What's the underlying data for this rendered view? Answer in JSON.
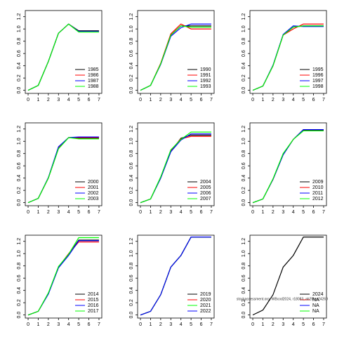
{
  "chart_data": [
    {
      "type": "line",
      "x": [
        0,
        1,
        2,
        3,
        4,
        5,
        6,
        7
      ],
      "xlim": [
        -0.28,
        7.28
      ],
      "xticks": [
        0,
        1,
        2,
        3,
        4,
        5,
        6,
        7
      ],
      "ylim": [
        -0.05,
        1.3
      ],
      "yticks": [
        {
          "value": 0,
          "label": "0.0"
        },
        0.2,
        0.4,
        0.6,
        0.8,
        {
          "value": 1,
          "label": "1.0"
        },
        1.2
      ],
      "legend": "bottomright",
      "series": [
        {
          "name": "1985",
          "color": "#000000",
          "values": [
            0,
            0.08,
            0.47,
            0.93,
            1.08,
            0.97,
            0.97,
            0.97
          ]
        },
        {
          "name": "1986",
          "color": "#ff0000",
          "values": [
            0,
            0.08,
            0.47,
            0.93,
            1.08,
            0.96,
            0.96,
            0.96
          ]
        },
        {
          "name": "1987",
          "color": "#0000ff",
          "values": [
            0,
            0.08,
            0.47,
            0.93,
            1.08,
            0.96,
            0.96,
            0.96
          ]
        },
        {
          "name": "1988",
          "color": "#00ff00",
          "values": [
            0,
            0.08,
            0.47,
            0.93,
            1.08,
            0.95,
            0.95,
            0.95
          ]
        }
      ]
    },
    {
      "type": "line",
      "x": [
        0,
        1,
        2,
        3,
        4,
        5,
        6,
        7
      ],
      "xlim": [
        -0.28,
        7.28
      ],
      "xticks": [
        0,
        1,
        2,
        3,
        4,
        5,
        6,
        7
      ],
      "ylim": [
        -0.05,
        1.3
      ],
      "yticks": [
        {
          "value": 0,
          "label": "0.0"
        },
        0.2,
        0.4,
        0.6,
        0.8,
        {
          "value": 1,
          "label": "1.0"
        },
        1.2
      ],
      "legend": "bottomright",
      "series": [
        {
          "name": "1990",
          "color": "#000000",
          "values": [
            0,
            0.08,
            0.43,
            0.9,
            1.05,
            1.05,
            1.05,
            1.05
          ]
        },
        {
          "name": "1991",
          "color": "#ff0000",
          "values": [
            0,
            0.08,
            0.44,
            0.92,
            1.08,
            1.0,
            1.0,
            1.0
          ]
        },
        {
          "name": "1992",
          "color": "#0000ff",
          "values": [
            0,
            0.08,
            0.42,
            0.88,
            1.02,
            1.08,
            1.08,
            1.08
          ]
        },
        {
          "name": "1993",
          "color": "#00ff00",
          "values": [
            0,
            0.08,
            0.43,
            0.9,
            1.05,
            1.03,
            1.03,
            1.03
          ]
        }
      ]
    },
    {
      "type": "line",
      "x": [
        0,
        1,
        2,
        3,
        4,
        5,
        6,
        7
      ],
      "xlim": [
        -0.28,
        7.28
      ],
      "xticks": [
        0,
        1,
        2,
        3,
        4,
        5,
        6,
        7
      ],
      "ylim": [
        -0.05,
        1.3
      ],
      "yticks": [
        {
          "value": 0,
          "label": "0.0"
        },
        0.2,
        0.4,
        0.6,
        0.8,
        {
          "value": 1,
          "label": "1.0"
        },
        1.2
      ],
      "legend": "bottomright",
      "series": [
        {
          "name": "1995",
          "color": "#000000",
          "values": [
            0,
            0.07,
            0.4,
            0.9,
            1.03,
            1.05,
            1.05,
            1.05
          ]
        },
        {
          "name": "1996",
          "color": "#ff0000",
          "values": [
            0,
            0.07,
            0.4,
            0.9,
            1.0,
            1.08,
            1.08,
            1.08
          ]
        },
        {
          "name": "1997",
          "color": "#0000ff",
          "values": [
            0,
            0.07,
            0.41,
            0.91,
            1.05,
            1.04,
            1.04,
            1.04
          ]
        },
        {
          "name": "1998",
          "color": "#00ff00",
          "values": [
            0,
            0.07,
            0.4,
            0.9,
            1.03,
            1.05,
            1.05,
            1.05
          ]
        }
      ]
    },
    {
      "type": "line",
      "x": [
        0,
        1,
        2,
        3,
        4,
        5,
        6,
        7
      ],
      "xlim": [
        -0.28,
        7.28
      ],
      "xticks": [
        0,
        1,
        2,
        3,
        4,
        5,
        6,
        7
      ],
      "ylim": [
        -0.05,
        1.3
      ],
      "yticks": [
        {
          "value": 0,
          "label": "0.0"
        },
        0.2,
        0.4,
        0.6,
        0.8,
        {
          "value": 1,
          "label": "1.0"
        },
        1.2
      ],
      "legend": "bottomright",
      "series": [
        {
          "name": "2000",
          "color": "#000000",
          "values": [
            0,
            0.07,
            0.4,
            0.88,
            1.06,
            1.05,
            1.05,
            1.05
          ]
        },
        {
          "name": "2001",
          "color": "#ff0000",
          "values": [
            0,
            0.07,
            0.4,
            0.9,
            1.06,
            1.06,
            1.06,
            1.06
          ]
        },
        {
          "name": "2002",
          "color": "#0000ff",
          "values": [
            0,
            0.07,
            0.41,
            0.91,
            1.06,
            1.07,
            1.07,
            1.07
          ]
        },
        {
          "name": "2003",
          "color": "#00ff00",
          "values": [
            0,
            0.07,
            0.4,
            0.88,
            1.06,
            1.04,
            1.04,
            1.04
          ]
        }
      ]
    },
    {
      "type": "line",
      "x": [
        0,
        1,
        2,
        3,
        4,
        5,
        6,
        7
      ],
      "xlim": [
        -0.28,
        7.28
      ],
      "xticks": [
        0,
        1,
        2,
        3,
        4,
        5,
        6,
        7
      ],
      "ylim": [
        -0.05,
        1.3
      ],
      "yticks": [
        {
          "value": 0,
          "label": "0.0"
        },
        0.2,
        0.4,
        0.6,
        0.8,
        {
          "value": 1,
          "label": "1.0"
        },
        1.2
      ],
      "legend": "bottomright",
      "series": [
        {
          "name": "2004",
          "color": "#000000",
          "values": [
            0,
            0.06,
            0.4,
            0.83,
            1.05,
            1.1,
            1.1,
            1.1
          ]
        },
        {
          "name": "2005",
          "color": "#ff0000",
          "values": [
            0,
            0.06,
            0.41,
            0.85,
            1.04,
            1.08,
            1.08,
            1.08
          ]
        },
        {
          "name": "2006",
          "color": "#0000ff",
          "values": [
            0,
            0.06,
            0.4,
            0.83,
            1.02,
            1.12,
            1.12,
            1.12
          ]
        },
        {
          "name": "2007",
          "color": "#00ff00",
          "values": [
            0,
            0.06,
            0.42,
            0.86,
            1.03,
            1.15,
            1.15,
            1.15
          ]
        }
      ]
    },
    {
      "type": "line",
      "x": [
        0,
        1,
        2,
        3,
        4,
        5,
        6,
        7
      ],
      "xlim": [
        -0.28,
        7.28
      ],
      "xticks": [
        0,
        1,
        2,
        3,
        4,
        5,
        6,
        7
      ],
      "ylim": [
        -0.05,
        1.3
      ],
      "yticks": [
        {
          "value": 0,
          "label": "0.0"
        },
        0.2,
        0.4,
        0.6,
        0.8,
        {
          "value": 1,
          "label": "1.0"
        },
        1.2
      ],
      "legend": "bottomright",
      "series": [
        {
          "name": "2009",
          "color": "#000000",
          "values": [
            0,
            0.06,
            0.38,
            0.78,
            1.03,
            1.18,
            1.18,
            1.18
          ]
        },
        {
          "name": "2010",
          "color": "#ff0000",
          "values": [
            0,
            0.06,
            0.38,
            0.79,
            1.03,
            1.19,
            1.19,
            1.19
          ]
        },
        {
          "name": "2011",
          "color": "#0000ff",
          "values": [
            0,
            0.06,
            0.38,
            0.78,
            1.03,
            1.19,
            1.19,
            1.19
          ]
        },
        {
          "name": "2012",
          "color": "#00ff00",
          "values": [
            0,
            0.06,
            0.39,
            0.8,
            1.03,
            1.17,
            1.17,
            1.17
          ]
        }
      ]
    },
    {
      "type": "line",
      "x": [
        0,
        1,
        2,
        3,
        4,
        5,
        6,
        7
      ],
      "xlim": [
        -0.28,
        7.28
      ],
      "xticks": [
        0,
        1,
        2,
        3,
        4,
        5,
        6,
        7
      ],
      "ylim": [
        -0.05,
        1.3
      ],
      "yticks": [
        {
          "value": 0,
          "label": "0.0"
        },
        0.2,
        0.4,
        0.6,
        0.8,
        {
          "value": 1,
          "label": "1.0"
        },
        1.2
      ],
      "legend": "bottomright",
      "series": [
        {
          "name": "2014",
          "color": "#000000",
          "values": [
            0,
            0.06,
            0.35,
            0.77,
            0.98,
            1.22,
            1.22,
            1.22
          ]
        },
        {
          "name": "2015",
          "color": "#ff0000",
          "values": [
            0,
            0.06,
            0.35,
            0.78,
            1.0,
            1.19,
            1.19,
            1.19
          ]
        },
        {
          "name": "2016",
          "color": "#0000ff",
          "values": [
            0,
            0.06,
            0.34,
            0.77,
            0.97,
            1.21,
            1.21,
            1.21
          ]
        },
        {
          "name": "2017",
          "color": "#00ff00",
          "values": [
            0,
            0.06,
            0.36,
            0.79,
            0.99,
            1.26,
            1.26,
            1.26
          ]
        }
      ]
    },
    {
      "type": "line",
      "x": [
        0,
        1,
        2,
        3,
        4,
        5,
        6,
        7
      ],
      "xlim": [
        -0.28,
        7.28
      ],
      "xticks": [
        0,
        1,
        2,
        3,
        4,
        5,
        6,
        7
      ],
      "ylim": [
        -0.05,
        1.3
      ],
      "yticks": [
        {
          "value": 0,
          "label": "0.0"
        },
        0.2,
        0.4,
        0.6,
        0.8,
        {
          "value": 1,
          "label": "1.0"
        },
        1.2
      ],
      "legend": "bottomright",
      "series": [
        {
          "name": "2019",
          "color": "#000000",
          "values": [
            0,
            0.06,
            0.33,
            0.78,
            0.97,
            1.27,
            1.27,
            1.27
          ]
        },
        {
          "name": "2020",
          "color": "#ff0000",
          "values": [
            0,
            0.06,
            0.33,
            0.78,
            0.97,
            1.27,
            1.27,
            1.27
          ]
        },
        {
          "name": "2021",
          "color": "#00ff00",
          "values": [
            0,
            0.06,
            0.33,
            0.78,
            0.97,
            1.27,
            1.27,
            1.27
          ]
        },
        {
          "name": "2022",
          "color": "#0000ff",
          "values": [
            0,
            0.06,
            0.33,
            0.78,
            0.97,
            1.27,
            1.27,
            1.27
          ]
        }
      ]
    },
    {
      "type": "line",
      "x": [
        0,
        1,
        2,
        3,
        4,
        5,
        6,
        7
      ],
      "xlim": [
        -0.28,
        7.28
      ],
      "xticks": [
        0,
        1,
        2,
        3,
        4,
        5,
        6,
        7
      ],
      "ylim": [
        -0.05,
        1.3
      ],
      "yticks": [
        {
          "value": 0,
          "label": "0.0"
        },
        0.2,
        0.4,
        0.6,
        0.8,
        {
          "value": 1,
          "label": "1.0"
        },
        1.2
      ],
      "legend": "bottomright",
      "annotation": "stockassessment.org, WBcod2024, r18083, ab2f8ea24269",
      "series": [
        {
          "name": "2024",
          "color": "#000000",
          "values": [
            0,
            0.08,
            0.33,
            0.78,
            0.97,
            1.27,
            1.27,
            1.27
          ]
        },
        {
          "name": "NA",
          "color": "#ff0000",
          "values": [
            null,
            null,
            null,
            null,
            null,
            null,
            null,
            null
          ]
        },
        {
          "name": "NA",
          "color": "#0000ff",
          "values": [
            null,
            null,
            null,
            null,
            null,
            null,
            null,
            null
          ]
        },
        {
          "name": "NA",
          "color": "#00ff00",
          "values": [
            null,
            null,
            null,
            null,
            null,
            null,
            null,
            null
          ]
        }
      ]
    }
  ]
}
